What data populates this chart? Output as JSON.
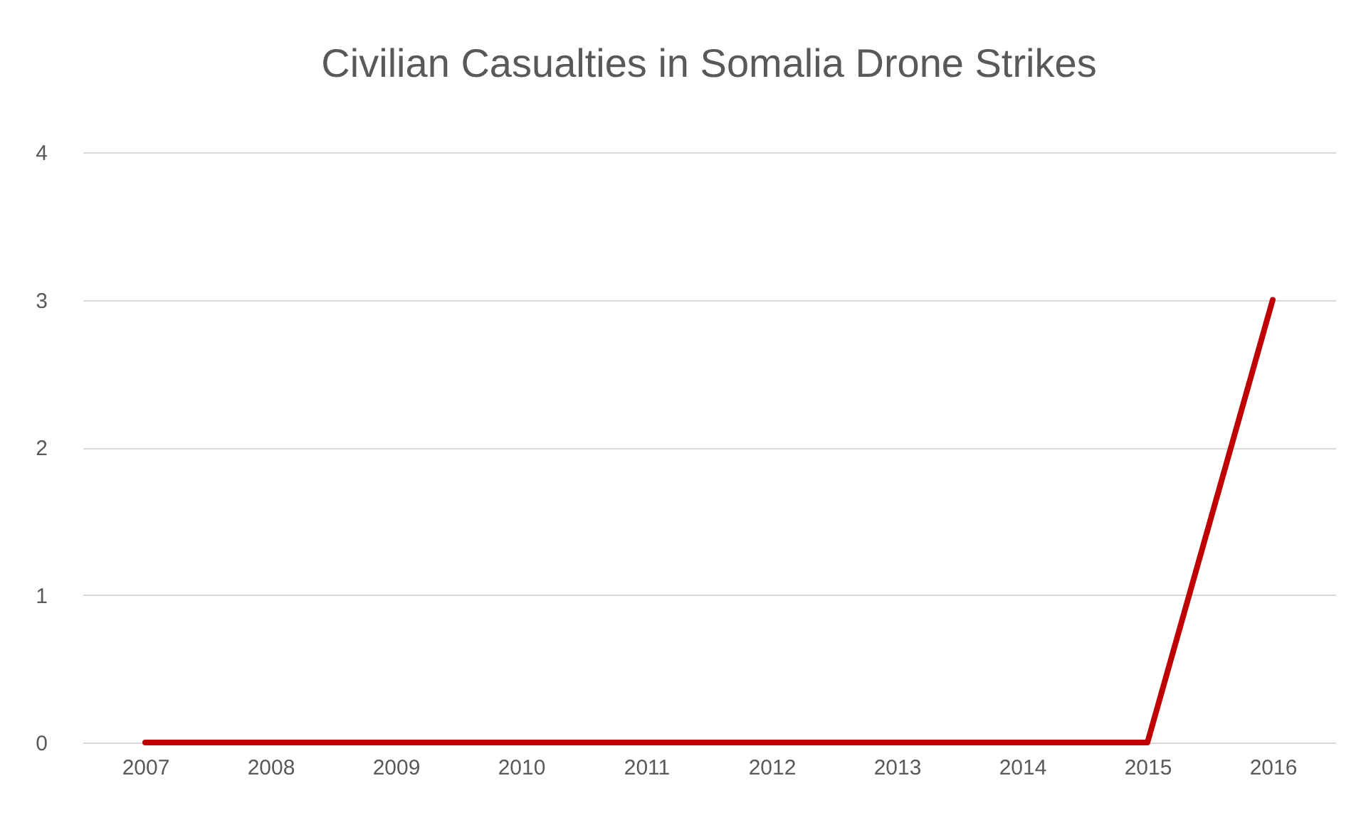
{
  "chart_data": {
    "type": "line",
    "title": "Civilian Casualties in Somalia Drone Strikes",
    "categories": [
      "2007",
      "2008",
      "2009",
      "2010",
      "2011",
      "2012",
      "2013",
      "2014",
      "2015",
      "2016"
    ],
    "series": [
      {
        "color": "#c00000",
        "values": [
          0,
          0,
          0,
          0,
          0,
          0,
          0,
          0,
          0,
          3
        ]
      }
    ],
    "ylim": [
      0,
      4
    ],
    "yticks": [
      0,
      1,
      2,
      3,
      4
    ],
    "grid": "y"
  }
}
